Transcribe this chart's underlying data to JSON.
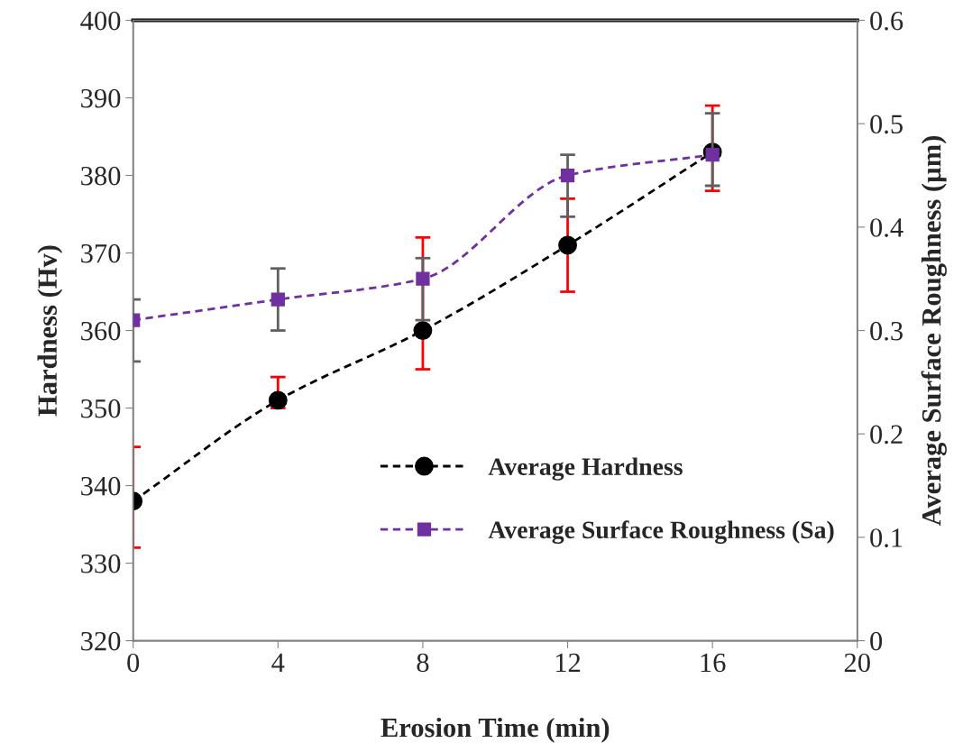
{
  "chart_data": {
    "type": "line",
    "xlabel": "Erosion Time (min)",
    "ylabel": "Hardness (Hv)",
    "y2label": "Average Surface Roughness (µm)",
    "x": [
      0,
      4,
      8,
      12,
      16
    ],
    "series": [
      {
        "name": "Average Hardness",
        "color": "#000000",
        "marker": "circle",
        "line_style": "dashed",
        "values": [
          338,
          351,
          360,
          371,
          383
        ],
        "errors": [
          [
            332,
            345
          ],
          [
            350,
            354
          ],
          [
            355,
            372
          ],
          [
            365,
            377
          ],
          [
            378,
            389
          ]
        ]
      },
      {
        "name": "Average Surface Roughness (Sa)",
        "color": "#7030a0",
        "marker": "square",
        "line_style": "dashed",
        "axis": "y2",
        "values": [
          0.31,
          0.33,
          0.35,
          0.45,
          0.47
        ],
        "errors": [
          [
            0.27,
            0.33
          ],
          [
            0.3,
            0.36
          ],
          [
            0.31,
            0.37
          ],
          [
            0.41,
            0.47
          ],
          [
            0.44,
            0.51
          ]
        ]
      }
    ],
    "xlim": [
      0,
      20
    ],
    "xticks": [
      0,
      4,
      8,
      12,
      16,
      20
    ],
    "ylim": [
      320,
      400
    ],
    "yticks": [
      320,
      330,
      340,
      350,
      360,
      370,
      380,
      390,
      400
    ],
    "y2lim": [
      0,
      0.6
    ],
    "y2ticks": [
      0,
      0.1,
      0.2,
      0.3,
      0.4,
      0.5,
      0.6
    ],
    "grid": false,
    "legend": "lower right"
  }
}
